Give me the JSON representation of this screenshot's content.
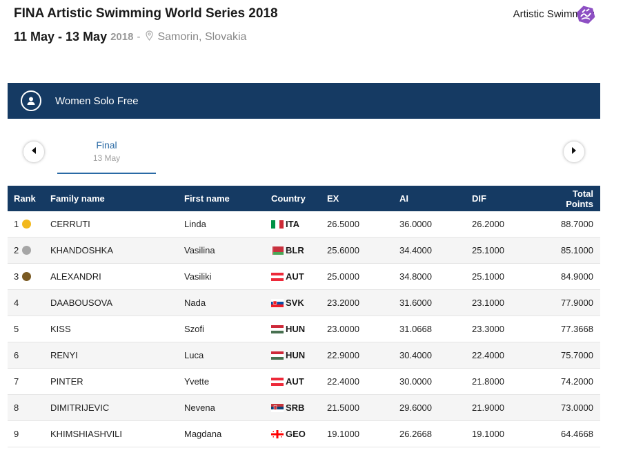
{
  "event": {
    "title": "FINA Artistic Swimming World Series 2018",
    "dates": "11 May - 13 May",
    "year": "2018",
    "separator": "-",
    "location": "Samorin, Slovakia",
    "sport": "Artistic Swimming",
    "sport_icon": "artistic-swimming-logo-icon"
  },
  "discipline": {
    "name": "Women Solo Free",
    "icon": "athlete-icon"
  },
  "round": {
    "name": "Final",
    "date": "13 May"
  },
  "table": {
    "headers": {
      "rank": "Rank",
      "family": "Family name",
      "first": "First name",
      "country": "Country",
      "ex": "EX",
      "ai": "AI",
      "dif": "DIF",
      "total": "Total Points"
    },
    "rows": [
      {
        "rank": "1",
        "medal": "gold",
        "family": "CERRUTI",
        "first": "Linda",
        "country": "ITA",
        "ex": "26.5000",
        "ai": "36.0000",
        "dif": "26.2000",
        "total": "88.7000"
      },
      {
        "rank": "2",
        "medal": "silver",
        "family": "KHANDOSHKA",
        "first": "Vasilina",
        "country": "BLR",
        "ex": "25.6000",
        "ai": "34.4000",
        "dif": "25.1000",
        "total": "85.1000"
      },
      {
        "rank": "3",
        "medal": "bronze",
        "family": "ALEXANDRI",
        "first": "Vasiliki",
        "country": "AUT",
        "ex": "25.0000",
        "ai": "34.8000",
        "dif": "25.1000",
        "total": "84.9000"
      },
      {
        "rank": "4",
        "medal": "",
        "family": "DAABOUSOVA",
        "first": "Nada",
        "country": "SVK",
        "ex": "23.2000",
        "ai": "31.6000",
        "dif": "23.1000",
        "total": "77.9000"
      },
      {
        "rank": "5",
        "medal": "",
        "family": "KISS",
        "first": "Szofi",
        "country": "HUN",
        "ex": "23.0000",
        "ai": "31.0668",
        "dif": "23.3000",
        "total": "77.3668"
      },
      {
        "rank": "6",
        "medal": "",
        "family": "RENYI",
        "first": "Luca",
        "country": "HUN",
        "ex": "22.9000",
        "ai": "30.4000",
        "dif": "22.4000",
        "total": "75.7000"
      },
      {
        "rank": "7",
        "medal": "",
        "family": "PINTER",
        "first": "Yvette",
        "country": "AUT",
        "ex": "22.4000",
        "ai": "30.0000",
        "dif": "21.8000",
        "total": "74.2000"
      },
      {
        "rank": "8",
        "medal": "",
        "family": "DIMITRIJEVIC",
        "first": "Nevena",
        "country": "SRB",
        "ex": "21.5000",
        "ai": "29.6000",
        "dif": "21.9000",
        "total": "73.0000"
      },
      {
        "rank": "9",
        "medal": "",
        "family": "KHIMSHIASHVILI",
        "first": "Magdana",
        "country": "GEO",
        "ex": "19.1000",
        "ai": "26.2668",
        "dif": "19.1000",
        "total": "64.4668"
      }
    ]
  },
  "colors": {
    "header_bg": "#153a63",
    "accent": "#2a6aa5",
    "gold": "#f2b81c",
    "silver": "#a6a6a6",
    "bronze": "#7a5a23",
    "sport_logo": "#8d4fc3"
  }
}
